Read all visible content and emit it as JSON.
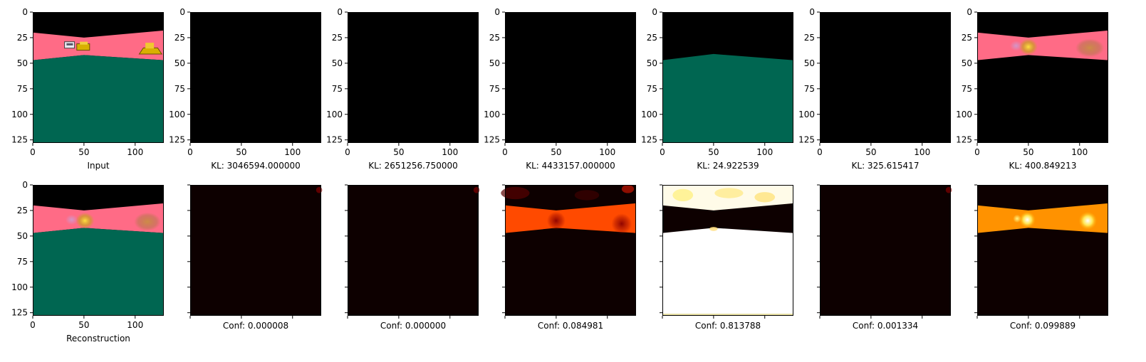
{
  "chart_data": {
    "type": "image-grid",
    "rows": 2,
    "cols": 7,
    "image_size": [
      128,
      128
    ],
    "xlim": [
      0,
      128
    ],
    "ylim": [
      128,
      0
    ],
    "xticks": [
      0,
      50,
      100
    ],
    "yticks": [
      0,
      25,
      50,
      75,
      100,
      125
    ],
    "panels": [
      {
        "row": 0,
        "col": 0,
        "kind": "scene",
        "label": "Input",
        "show_xtick_labels": true,
        "show_ytick_labels": true
      },
      {
        "row": 0,
        "col": 1,
        "kind": "black",
        "label": "KL: 3046594.000000",
        "show_xtick_labels": true,
        "show_ytick_labels": true
      },
      {
        "row": 0,
        "col": 2,
        "kind": "black",
        "label": "KL: 2651256.750000",
        "show_xtick_labels": true,
        "show_ytick_labels": true
      },
      {
        "row": 0,
        "col": 3,
        "kind": "black",
        "label": "KL: 4433157.000000",
        "show_xtick_labels": true,
        "show_ytick_labels": true
      },
      {
        "row": 0,
        "col": 4,
        "kind": "ground",
        "label": "KL: 24.922539",
        "show_xtick_labels": true,
        "show_ytick_labels": true
      },
      {
        "row": 0,
        "col": 5,
        "kind": "black",
        "label": "KL: 325.615417",
        "show_xtick_labels": true,
        "show_ytick_labels": true
      },
      {
        "row": 0,
        "col": 6,
        "kind": "road-blur",
        "label": "KL: 400.849213",
        "show_xtick_labels": true,
        "show_ytick_labels": true
      },
      {
        "row": 1,
        "col": 0,
        "kind": "recon",
        "label": "Reconstruction",
        "show_xtick_labels": true,
        "show_ytick_labels": true
      },
      {
        "row": 1,
        "col": 1,
        "kind": "heat-dark",
        "label": "Conf: 0.000008",
        "confidence": 8e-06,
        "show_xtick_labels": false,
        "show_ytick_labels": false
      },
      {
        "row": 1,
        "col": 2,
        "kind": "heat-dark",
        "label": "Conf: 0.000000",
        "confidence": 0.0,
        "show_xtick_labels": false,
        "show_ytick_labels": false
      },
      {
        "row": 1,
        "col": 3,
        "kind": "heat-road",
        "label": "Conf: 0.084981",
        "confidence": 0.084981,
        "show_xtick_labels": false,
        "show_ytick_labels": false
      },
      {
        "row": 1,
        "col": 4,
        "kind": "heat-ground",
        "label": "Conf: 0.813788",
        "confidence": 0.813788,
        "show_xtick_labels": false,
        "show_ytick_labels": false
      },
      {
        "row": 1,
        "col": 5,
        "kind": "heat-dark",
        "label": "Conf: 0.001334",
        "confidence": 0.001334,
        "show_xtick_labels": false,
        "show_ytick_labels": false
      },
      {
        "row": 1,
        "col": 6,
        "kind": "heat-bright",
        "label": "Conf: 0.099889",
        "confidence": 0.099889,
        "show_xtick_labels": false,
        "show_ytick_labels": false
      }
    ],
    "colors": {
      "road": "#ff6b86",
      "ground": "#006651",
      "sky": "#000000",
      "heat_base": "#0d0000",
      "heat_red": "#ff4a00",
      "heat_orange": "#ff9200",
      "heat_white": "#ffffff",
      "car_yellow": "#d8b000"
    }
  }
}
